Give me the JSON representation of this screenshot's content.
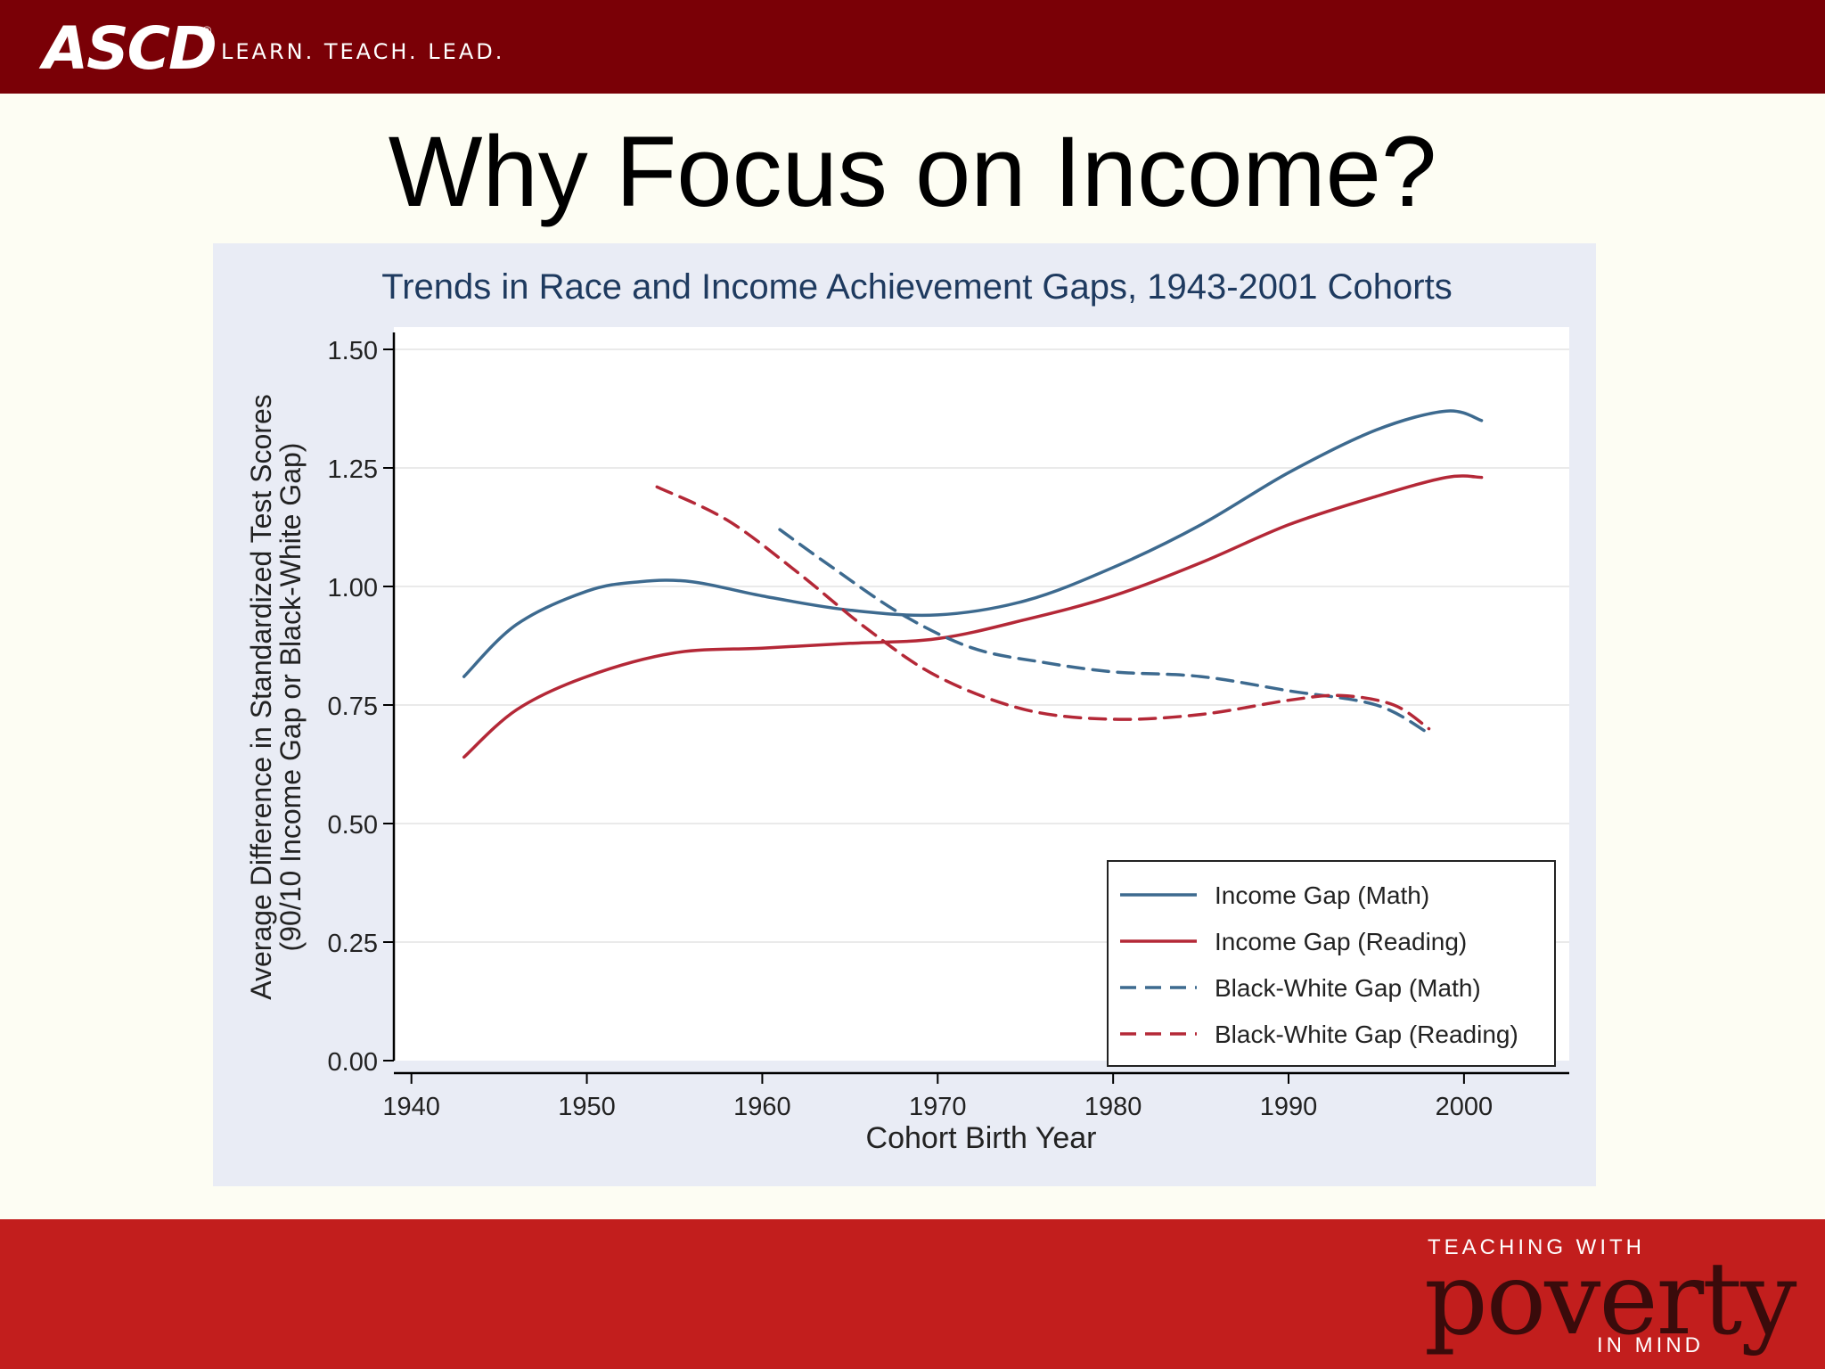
{
  "header": {
    "logo_text": "ASCD",
    "logo_registered": "®",
    "tagline": "LEARN. TEACH. LEAD."
  },
  "slide": {
    "title": "Why Focus on Income?"
  },
  "footer": {
    "brand_top": "TEACHING WITH",
    "brand_main": "poverty",
    "brand_bottom": "IN MIND"
  },
  "colors": {
    "header_bar": "#7a0006",
    "footer_bar": "#c21e1d",
    "slide_background": "#fdfdf3",
    "chart_panel": "#e9ecf5",
    "math_series": "#3d6a8f",
    "reading_series": "#b42837",
    "chart_title": "#1e3a5f"
  },
  "chart_data": {
    "type": "line",
    "title": "Trends in Race and Income Achievement Gaps, 1943-2001 Cohorts",
    "xlabel": "Cohort Birth Year",
    "ylabel": "Average Difference in Standardized Test Scores",
    "ylabel2": "(90/10 Income Gap or Black-White Gap)",
    "xlim": [
      1939,
      2006
    ],
    "ylim": [
      0,
      1.5
    ],
    "xticks": [
      1940,
      1950,
      1960,
      1970,
      1980,
      1990,
      2000
    ],
    "yticks": [
      0,
      0.25,
      0.5,
      0.75,
      1.0,
      1.25,
      1.5
    ],
    "ytick_labels": [
      "0.00",
      "0.25",
      "0.50",
      "0.75",
      "1.00",
      "1.25",
      "1.50"
    ],
    "grid": true,
    "legend_position": "bottom-right",
    "series": [
      {
        "name": "Income Gap (Math)",
        "color": "#3d6a8f",
        "style": "solid",
        "points": [
          [
            1943,
            0.81
          ],
          [
            1946,
            0.92
          ],
          [
            1950,
            0.99
          ],
          [
            1953,
            1.01
          ],
          [
            1956,
            1.01
          ],
          [
            1960,
            0.98
          ],
          [
            1965,
            0.95
          ],
          [
            1970,
            0.94
          ],
          [
            1975,
            0.97
          ],
          [
            1980,
            1.04
          ],
          [
            1985,
            1.13
          ],
          [
            1990,
            1.24
          ],
          [
            1995,
            1.33
          ],
          [
            1999,
            1.37
          ],
          [
            2001,
            1.35
          ]
        ]
      },
      {
        "name": "Income Gap (Reading)",
        "color": "#b42837",
        "style": "solid",
        "points": [
          [
            1943,
            0.64
          ],
          [
            1946,
            0.74
          ],
          [
            1950,
            0.81
          ],
          [
            1955,
            0.86
          ],
          [
            1960,
            0.87
          ],
          [
            1965,
            0.88
          ],
          [
            1970,
            0.89
          ],
          [
            1975,
            0.93
          ],
          [
            1980,
            0.98
          ],
          [
            1985,
            1.05
          ],
          [
            1990,
            1.13
          ],
          [
            1995,
            1.19
          ],
          [
            1999,
            1.23
          ],
          [
            2001,
            1.23
          ]
        ]
      },
      {
        "name": "Black-White Gap (Math)",
        "color": "#3d6a8f",
        "style": "dashed",
        "points": [
          [
            1961,
            1.12
          ],
          [
            1964,
            1.04
          ],
          [
            1968,
            0.94
          ],
          [
            1972,
            0.87
          ],
          [
            1976,
            0.84
          ],
          [
            1980,
            0.82
          ],
          [
            1985,
            0.81
          ],
          [
            1990,
            0.78
          ],
          [
            1995,
            0.75
          ],
          [
            1998,
            0.69
          ]
        ]
      },
      {
        "name": "Black-White Gap (Reading)",
        "color": "#b42837",
        "style": "dashed",
        "points": [
          [
            1954,
            1.21
          ],
          [
            1958,
            1.14
          ],
          [
            1962,
            1.03
          ],
          [
            1966,
            0.91
          ],
          [
            1970,
            0.81
          ],
          [
            1975,
            0.74
          ],
          [
            1980,
            0.72
          ],
          [
            1985,
            0.73
          ],
          [
            1990,
            0.76
          ],
          [
            1993,
            0.77
          ],
          [
            1996,
            0.75
          ],
          [
            1998,
            0.7
          ]
        ]
      }
    ]
  }
}
